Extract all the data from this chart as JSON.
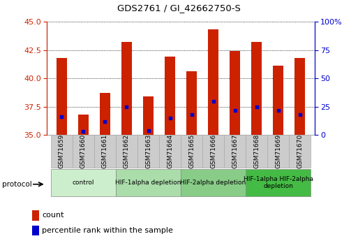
{
  "title": "GDS2761 / GI_42662750-S",
  "samples": [
    "GSM71659",
    "GSM71660",
    "GSM71661",
    "GSM71662",
    "GSM71663",
    "GSM71664",
    "GSM71665",
    "GSM71666",
    "GSM71667",
    "GSM71668",
    "GSM71669",
    "GSM71670"
  ],
  "counts": [
    41.8,
    36.8,
    38.7,
    43.2,
    38.4,
    41.9,
    40.6,
    44.3,
    42.4,
    43.2,
    41.1,
    41.8
  ],
  "percentile_ranks": [
    36.6,
    35.3,
    36.2,
    37.5,
    35.4,
    36.5,
    36.8,
    38.0,
    37.2,
    37.5,
    37.2,
    36.8
  ],
  "ylim_left": [
    35,
    45
  ],
  "ylim_right": [
    0,
    100
  ],
  "yticks_left": [
    35,
    37.5,
    40,
    42.5,
    45
  ],
  "yticks_right": [
    0,
    25,
    50,
    75,
    100
  ],
  "bar_color": "#cc2200",
  "dot_color": "#0000cc",
  "bar_width": 0.5,
  "protocol_groups": [
    {
      "label": "control",
      "start": 0,
      "end": 2,
      "color": "#cceecc"
    },
    {
      "label": "HIF-1alpha depletion",
      "start": 3,
      "end": 5,
      "color": "#aaddaa"
    },
    {
      "label": "HIF-2alpha depletion",
      "start": 6,
      "end": 8,
      "color": "#88cc88"
    },
    {
      "label": "HIF-1alpha HIF-2alpha\ndepletion",
      "start": 9,
      "end": 11,
      "color": "#44bb44"
    }
  ],
  "legend_count_label": "count",
  "legend_percentile_label": "percentile rank within the sample",
  "protocol_label": "protocol",
  "left_tick_color": "#cc2200",
  "right_tick_color": "#0000cc",
  "xtick_bg_color": "#cccccc",
  "xtick_border_color": "#aaaaaa"
}
